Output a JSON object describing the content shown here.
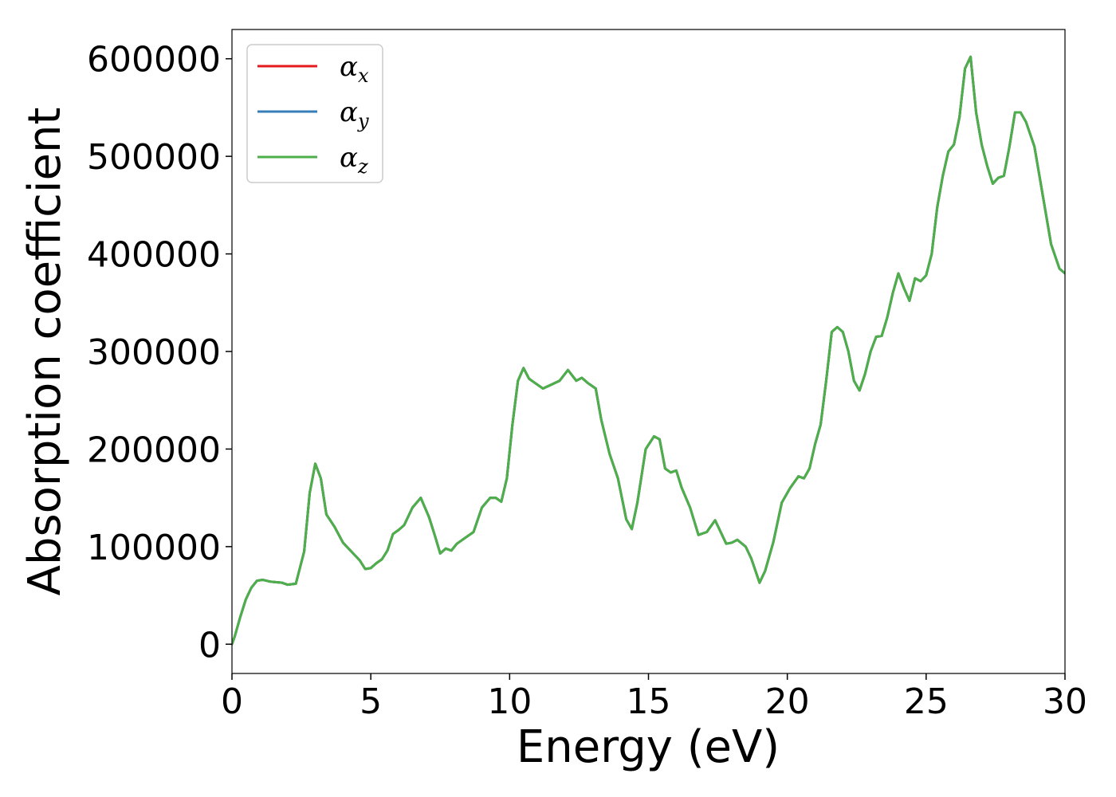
{
  "chart_data": {
    "type": "line",
    "xlabel": "Energy (eV)",
    "ylabel": "Absorption coefficient",
    "xlim": [
      0,
      30
    ],
    "ylim": [
      -30000,
      630000
    ],
    "xticks": [
      0,
      5,
      10,
      15,
      20,
      25,
      30
    ],
    "xtick_labels": [
      "0",
      "5",
      "10",
      "15",
      "20",
      "25",
      "30"
    ],
    "yticks": [
      0,
      100000,
      200000,
      300000,
      400000,
      500000,
      600000
    ],
    "ytick_labels": [
      "0",
      "100000",
      "200000",
      "300000",
      "400000",
      "500000",
      "600000"
    ],
    "grid": false,
    "legend": "upper-left",
    "series": [
      {
        "name": "α",
        "subscript": "x",
        "color": "#e41a1c",
        "x": [
          0,
          0.1,
          0.3,
          0.5,
          0.7,
          0.9,
          1.1,
          1.4,
          1.8,
          2.0,
          2.3,
          2.6,
          2.8,
          3.0,
          3.2,
          3.4,
          3.7,
          4.0,
          4.3,
          4.6,
          4.8,
          5.0,
          5.2,
          5.4,
          5.6,
          5.8,
          6.0,
          6.2,
          6.5,
          6.8,
          7.1,
          7.3,
          7.5,
          7.7,
          7.9,
          8.1,
          8.4,
          8.7,
          9.0,
          9.3,
          9.5,
          9.7,
          9.9,
          10.1,
          10.3,
          10.5,
          10.7,
          10.9,
          11.2,
          11.5,
          11.8,
          12.1,
          12.4,
          12.6,
          12.8,
          13.1,
          13.3,
          13.6,
          13.9,
          14.2,
          14.4,
          14.6,
          14.9,
          15.2,
          15.4,
          15.6,
          15.8,
          16.0,
          16.2,
          16.5,
          16.8,
          17.1,
          17.4,
          17.6,
          17.8,
          18.0,
          18.2,
          18.5,
          18.7,
          19.0,
          19.2,
          19.5,
          19.8,
          20.1,
          20.4,
          20.6,
          20.8,
          21.0,
          21.2,
          21.4,
          21.6,
          21.8,
          22.0,
          22.2,
          22.4,
          22.6,
          22.8,
          23.0,
          23.2,
          23.4,
          23.6,
          23.8,
          24.0,
          24.2,
          24.4,
          24.6,
          24.8,
          25.0,
          25.2,
          25.4,
          25.6,
          25.8,
          26.0,
          26.2,
          26.4,
          26.6,
          26.8,
          27.0,
          27.2,
          27.4,
          27.6,
          27.8,
          28.0,
          28.2,
          28.4,
          28.6,
          28.9,
          29.2,
          29.5,
          29.8,
          30.0
        ],
        "y": [
          0,
          8000,
          28000,
          46000,
          58000,
          65000,
          66000,
          64000,
          63000,
          61000,
          62000,
          95000,
          155000,
          185000,
          170000,
          133000,
          120000,
          104000,
          95000,
          86000,
          77000,
          78000,
          83000,
          87000,
          96000,
          113000,
          117000,
          122000,
          140000,
          150000,
          130000,
          112000,
          93000,
          98000,
          96000,
          103000,
          109000,
          115000,
          140000,
          150000,
          150000,
          146000,
          170000,
          225000,
          270000,
          283000,
          272000,
          268000,
          262000,
          266000,
          270000,
          281000,
          270000,
          273000,
          268000,
          262000,
          230000,
          195000,
          170000,
          128000,
          118000,
          145000,
          200000,
          213000,
          210000,
          180000,
          176000,
          178000,
          160000,
          140000,
          112000,
          115000,
          127000,
          115000,
          103000,
          104000,
          107000,
          100000,
          88000,
          63000,
          75000,
          105000,
          145000,
          160000,
          172000,
          170000,
          180000,
          205000,
          225000,
          270000,
          320000,
          325000,
          320000,
          300000,
          270000,
          260000,
          277000,
          300000,
          315000,
          316000,
          335000,
          360000,
          380000,
          365000,
          352000,
          375000,
          372000,
          378000,
          400000,
          448000,
          480000,
          505000,
          512000,
          540000,
          590000,
          602000,
          545000,
          512000,
          490000,
          472000,
          478000,
          480000,
          510000,
          545000,
          545000,
          535000,
          510000,
          460000,
          410000,
          385000,
          380000
        ]
      },
      {
        "name": "α",
        "subscript": "y",
        "color": "#377eb8",
        "x": [
          0,
          0.1,
          0.3,
          0.5,
          0.7,
          0.9,
          1.1,
          1.4,
          1.8,
          2.0,
          2.3,
          2.6,
          2.8,
          3.0,
          3.2,
          3.4,
          3.7,
          4.0,
          4.3,
          4.6,
          4.8,
          5.0,
          5.2,
          5.4,
          5.6,
          5.8,
          6.0,
          6.2,
          6.5,
          6.8,
          7.1,
          7.3,
          7.5,
          7.7,
          7.9,
          8.1,
          8.4,
          8.7,
          9.0,
          9.3,
          9.5,
          9.7,
          9.9,
          10.1,
          10.3,
          10.5,
          10.7,
          10.9,
          11.2,
          11.5,
          11.8,
          12.1,
          12.4,
          12.6,
          12.8,
          13.1,
          13.3,
          13.6,
          13.9,
          14.2,
          14.4,
          14.6,
          14.9,
          15.2,
          15.4,
          15.6,
          15.8,
          16.0,
          16.2,
          16.5,
          16.8,
          17.1,
          17.4,
          17.6,
          17.8,
          18.0,
          18.2,
          18.5,
          18.7,
          19.0,
          19.2,
          19.5,
          19.8,
          20.1,
          20.4,
          20.6,
          20.8,
          21.0,
          21.2,
          21.4,
          21.6,
          21.8,
          22.0,
          22.2,
          22.4,
          22.6,
          22.8,
          23.0,
          23.2,
          23.4,
          23.6,
          23.8,
          24.0,
          24.2,
          24.4,
          24.6,
          24.8,
          25.0,
          25.2,
          25.4,
          25.6,
          25.8,
          26.0,
          26.2,
          26.4,
          26.6,
          26.8,
          27.0,
          27.2,
          27.4,
          27.6,
          27.8,
          28.0,
          28.2,
          28.4,
          28.6,
          28.9,
          29.2,
          29.5,
          29.8,
          30.0
        ],
        "y": [
          0,
          8000,
          28000,
          46000,
          58000,
          65000,
          66000,
          64000,
          63000,
          61000,
          62000,
          95000,
          155000,
          185000,
          170000,
          133000,
          120000,
          104000,
          95000,
          86000,
          77000,
          78000,
          83000,
          87000,
          96000,
          113000,
          117000,
          122000,
          140000,
          150000,
          130000,
          112000,
          93000,
          98000,
          96000,
          103000,
          109000,
          115000,
          140000,
          150000,
          150000,
          146000,
          170000,
          225000,
          270000,
          283000,
          272000,
          268000,
          262000,
          266000,
          270000,
          281000,
          270000,
          273000,
          268000,
          262000,
          230000,
          195000,
          170000,
          128000,
          118000,
          145000,
          200000,
          213000,
          210000,
          180000,
          176000,
          178000,
          160000,
          140000,
          112000,
          115000,
          127000,
          115000,
          103000,
          104000,
          107000,
          100000,
          88000,
          63000,
          75000,
          105000,
          145000,
          160000,
          172000,
          170000,
          180000,
          205000,
          225000,
          270000,
          320000,
          325000,
          320000,
          300000,
          270000,
          260000,
          277000,
          300000,
          315000,
          316000,
          335000,
          360000,
          380000,
          365000,
          352000,
          375000,
          372000,
          378000,
          400000,
          448000,
          480000,
          505000,
          512000,
          540000,
          590000,
          602000,
          545000,
          512000,
          490000,
          472000,
          478000,
          480000,
          510000,
          545000,
          545000,
          535000,
          510000,
          460000,
          410000,
          385000,
          380000
        ]
      },
      {
        "name": "α",
        "subscript": "z",
        "color": "#4daf4a",
        "x": [
          0,
          0.1,
          0.3,
          0.5,
          0.7,
          0.9,
          1.1,
          1.4,
          1.8,
          2.0,
          2.3,
          2.6,
          2.8,
          3.0,
          3.2,
          3.4,
          3.7,
          4.0,
          4.3,
          4.6,
          4.8,
          5.0,
          5.2,
          5.4,
          5.6,
          5.8,
          6.0,
          6.2,
          6.5,
          6.8,
          7.1,
          7.3,
          7.5,
          7.7,
          7.9,
          8.1,
          8.4,
          8.7,
          9.0,
          9.3,
          9.5,
          9.7,
          9.9,
          10.1,
          10.3,
          10.5,
          10.7,
          10.9,
          11.2,
          11.5,
          11.8,
          12.1,
          12.4,
          12.6,
          12.8,
          13.1,
          13.3,
          13.6,
          13.9,
          14.2,
          14.4,
          14.6,
          14.9,
          15.2,
          15.4,
          15.6,
          15.8,
          16.0,
          16.2,
          16.5,
          16.8,
          17.1,
          17.4,
          17.6,
          17.8,
          18.0,
          18.2,
          18.5,
          18.7,
          19.0,
          19.2,
          19.5,
          19.8,
          20.1,
          20.4,
          20.6,
          20.8,
          21.0,
          21.2,
          21.4,
          21.6,
          21.8,
          22.0,
          22.2,
          22.4,
          22.6,
          22.8,
          23.0,
          23.2,
          23.4,
          23.6,
          23.8,
          24.0,
          24.2,
          24.4,
          24.6,
          24.8,
          25.0,
          25.2,
          25.4,
          25.6,
          25.8,
          26.0,
          26.2,
          26.4,
          26.6,
          26.8,
          27.0,
          27.2,
          27.4,
          27.6,
          27.8,
          28.0,
          28.2,
          28.4,
          28.6,
          28.9,
          29.2,
          29.5,
          29.8,
          30.0
        ],
        "y": [
          0,
          8000,
          28000,
          46000,
          58000,
          65000,
          66000,
          64000,
          63000,
          61000,
          62000,
          95000,
          155000,
          185000,
          170000,
          133000,
          120000,
          104000,
          95000,
          86000,
          77000,
          78000,
          83000,
          87000,
          96000,
          113000,
          117000,
          122000,
          140000,
          150000,
          130000,
          112000,
          93000,
          98000,
          96000,
          103000,
          109000,
          115000,
          140000,
          150000,
          150000,
          146000,
          170000,
          225000,
          270000,
          283000,
          272000,
          268000,
          262000,
          266000,
          270000,
          281000,
          270000,
          273000,
          268000,
          262000,
          230000,
          195000,
          170000,
          128000,
          118000,
          145000,
          200000,
          213000,
          210000,
          180000,
          176000,
          178000,
          160000,
          140000,
          112000,
          115000,
          127000,
          115000,
          103000,
          104000,
          107000,
          100000,
          88000,
          63000,
          75000,
          105000,
          145000,
          160000,
          172000,
          170000,
          180000,
          205000,
          225000,
          270000,
          320000,
          325000,
          320000,
          300000,
          270000,
          260000,
          277000,
          300000,
          315000,
          316000,
          335000,
          360000,
          380000,
          365000,
          352000,
          375000,
          372000,
          378000,
          400000,
          448000,
          480000,
          505000,
          512000,
          540000,
          590000,
          602000,
          545000,
          512000,
          490000,
          472000,
          478000,
          480000,
          510000,
          545000,
          545000,
          535000,
          510000,
          460000,
          410000,
          385000,
          380000
        ]
      }
    ]
  }
}
